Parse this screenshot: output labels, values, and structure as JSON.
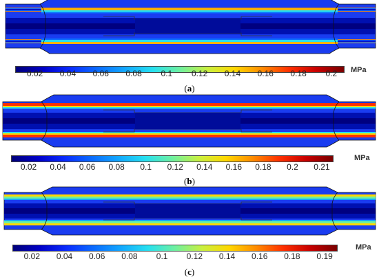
{
  "colors": {
    "scale": [
      "#00007a",
      "#0000c8",
      "#0a2cff",
      "#0a6cff",
      "#12a8ff",
      "#26e0f0",
      "#6ef0a0",
      "#c8f040",
      "#ffd800",
      "#ff8c00",
      "#ff3000",
      "#c80000",
      "#7a0000"
    ]
  },
  "panels": [
    {
      "caption_open": "(",
      "caption_letter": "a",
      "caption_close": ")",
      "unit": "MPa",
      "ticks": [
        "0.02",
        "0.04",
        "0.06",
        "0.08",
        "0.1",
        "0.12",
        "0.14",
        "0.16",
        "0.18",
        "0.2"
      ]
    },
    {
      "caption_open": "(",
      "caption_letter": "b",
      "caption_close": ")",
      "unit": "MPa",
      "ticks": [
        "0.02",
        "0.04",
        "0.06",
        "0.08",
        "0.1",
        "0.12",
        "0.14",
        "0.16",
        "0.18",
        "0.2",
        "0.21"
      ]
    },
    {
      "caption_open": "(",
      "caption_letter": "c",
      "caption_close": ")",
      "unit": "MPa",
      "ticks": [
        "0.02",
        "0.04",
        "0.06",
        "0.08",
        "0.1",
        "0.12",
        "0.14",
        "0.16",
        "0.18",
        "0.19"
      ]
    }
  ]
}
